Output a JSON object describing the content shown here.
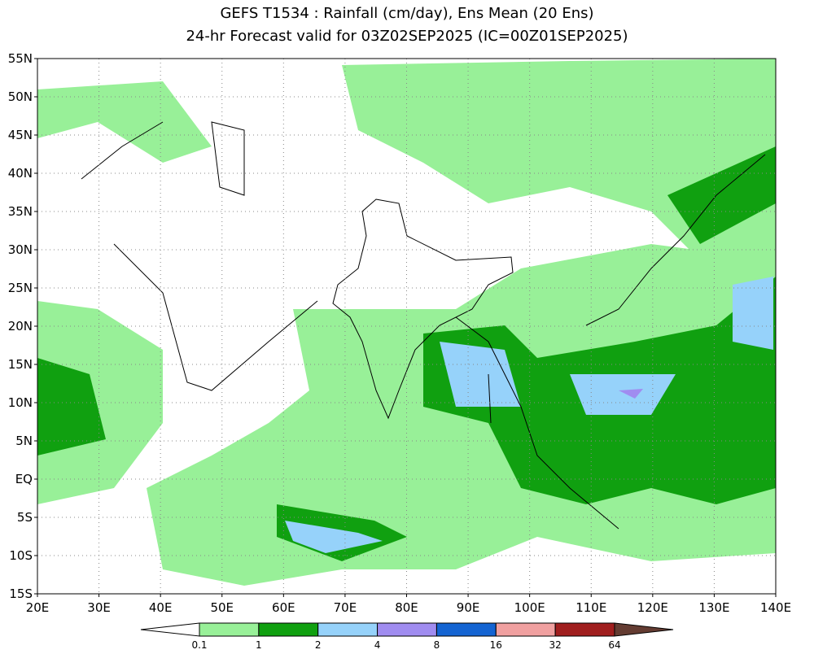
{
  "title": [
    "GEFS T1534 : Rainfall (cm/day), Ens Mean (20 Ens)",
    "24-hr Forecast valid for 03Z02SEP2025 (IC=00Z01SEP2025)"
  ],
  "lat_ticks": [
    "55N",
    "50N",
    "45N",
    "40N",
    "35N",
    "30N",
    "25N",
    "20N",
    "15N",
    "10N",
    "5N",
    "EQ",
    "5S",
    "10S",
    "15S"
  ],
  "lon_ticks": [
    "20E",
    "30E",
    "40E",
    "50E",
    "60E",
    "70E",
    "80E",
    "90E",
    "100E",
    "110E",
    "120E",
    "130E",
    "140E"
  ],
  "colorbar": {
    "colors": [
      "#98f098",
      "#10a010",
      "#96d2fa",
      "#a08cf0",
      "#1464d2",
      "#f0a0a0",
      "#a01e1e"
    ],
    "below_color": "#ffffff",
    "above_color": "#643c32",
    "labels": [
      "0.1",
      "1",
      "2",
      "4",
      "8",
      "16",
      "32",
      "64"
    ]
  }
}
